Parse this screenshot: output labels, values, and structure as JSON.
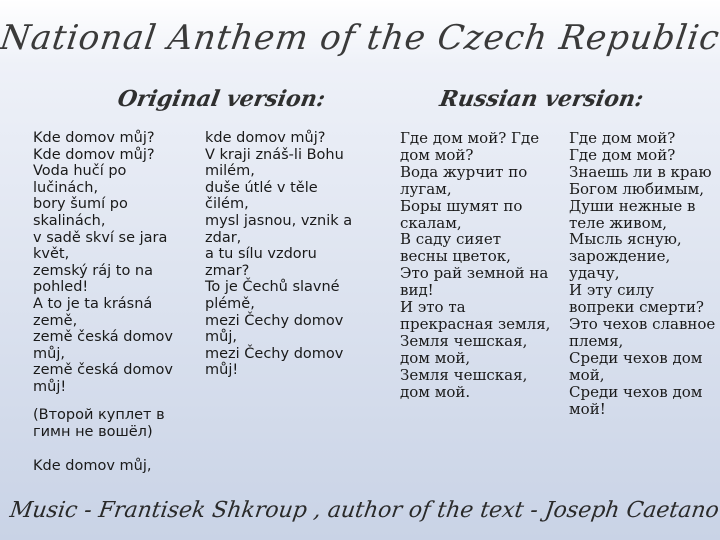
{
  "title": "National Anthem of the Czech Republic",
  "original_heading": "Original version:",
  "russian_heading": "Russian version:",
  "original_col1": "Kde domov můj?\nKde domov můj?\nVoda hučí po\nlučinách,\nbory šumí po\nskalinách,\nv sadě skví se jara\nkvět,\nzemský ráj to na\npohled!\nA to je ta krásná\nzemě,\nzemě česká domov\nmůj,\nzemě česká domov\nmůj!",
  "original_col2": "kde domov můj?\nV kraji znáš-li Bohu\nmilém,\nduše útlé v těle\nčilém,\nmysl jasnou, vznik a\nzdar,\na tu sílu vzdoru\nzmar?\nTo je Čechů slavné\nplémě,\nmezi Čechy domov\nmůj,\nmezi Čechy domov\nmůj!",
  "russian_col1": "Где дом мой? Где\nдом мой?\nВода журчит по\nлугам,\nБоры шумят по\nскалам,\nВ саду сияет\nвесны цветок,\nЭто рай земной на\nвид!\nИ это та\nпрекрасная земля,\nЗемля чешская,\nдом мой,\nЗемля чешская,\nдом мой.",
  "russian_col2": "Где дом мой?\nГде дом мой?\nЗнаешь ли в краю\nБогом любимым,\nДуши нежные в\nтеле живом,\nМысль ясную,\nзарождение,\nудачу,\nИ эту силу\nвопреки смерти?\nЭто чехов славное\nплемя,\nСреди чехов дом\nмой,\nСреди чехов дом\nмой!",
  "second_verse_note": "(Второй куплет в\nгимн не вошёл)",
  "repeat_line": "Kde domov můj,",
  "footer": "Music - Frantisek Shkroup , author of the text - Joseph Caetano Rear ."
}
